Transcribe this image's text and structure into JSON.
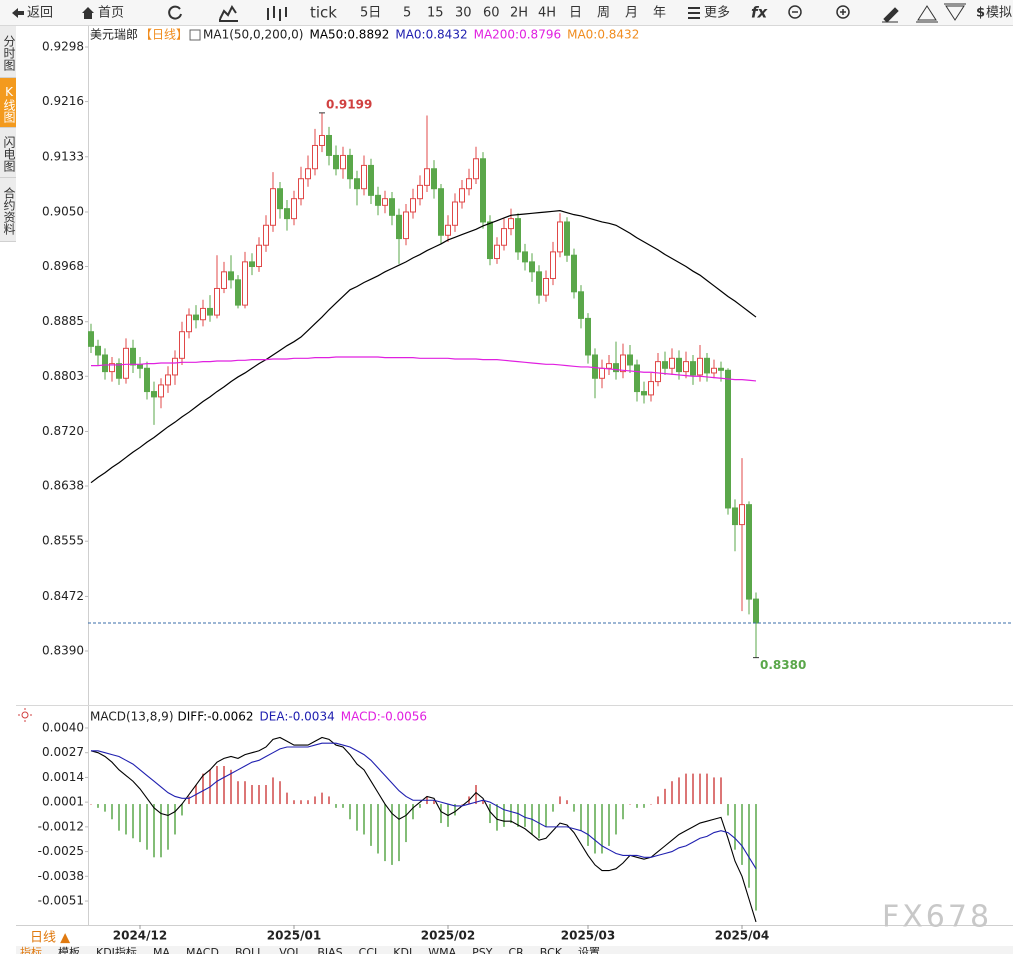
{
  "toolbar": {
    "items": [
      "返回",
      "首页",
      "tick",
      "5日",
      "5",
      "15",
      "30",
      "60",
      "2H",
      "4H",
      "日",
      "周",
      "月",
      "年",
      "更多",
      "模拟"
    ]
  },
  "sidebar": {
    "tabs": [
      "分时图",
      "K线图",
      "闪电图",
      "合约资料"
    ]
  },
  "chart_data": [
    {
      "type": "candlestick",
      "title": "美元瑞郎",
      "period": "【日线】",
      "indicator": "MA1(50,0,200,0)",
      "legend": [
        {
          "text": "MA50:0.8892",
          "color": "#000000"
        },
        {
          "text": "MA0:0.8432",
          "color": "#2020b0"
        },
        {
          "text": "MA200:0.8796",
          "color": "#e020e0"
        },
        {
          "text": "MA0:0.8432",
          "color": "#f08c1e"
        }
      ],
      "categories": [
        null,
        null,
        null,
        null,
        null,
        null,
        null,
        "2024/12",
        null,
        null,
        null,
        null,
        null,
        null,
        null,
        null,
        null,
        null,
        null,
        null,
        null,
        null,
        null,
        null,
        null,
        null,
        null,
        null,
        null,
        "2025/01",
        null,
        null,
        null,
        null,
        null,
        null,
        null,
        null,
        null,
        null,
        null,
        null,
        null,
        null,
        null,
        null,
        null,
        null,
        null,
        null,
        null,
        "2025/02",
        null,
        null,
        null,
        null,
        null,
        null,
        null,
        null,
        null,
        null,
        null,
        null,
        null,
        null,
        null,
        null,
        null,
        null,
        null,
        "2025/03",
        null,
        null,
        null,
        null,
        null,
        null,
        null,
        null,
        null,
        null,
        null,
        null,
        null,
        null,
        null,
        null,
        null,
        null,
        null,
        null,
        null,
        "2025/04",
        null,
        null
      ],
      "open": [
        0.887,
        0.8848,
        0.8835,
        0.881,
        0.8822,
        0.88,
        0.8845,
        0.882,
        0.8815,
        0.878,
        0.8772,
        0.879,
        0.8805,
        0.883,
        0.887,
        0.8895,
        0.8888,
        0.8905,
        0.8895,
        0.8935,
        0.896,
        0.8948,
        0.891,
        0.8975,
        0.8968,
        0.9,
        0.903,
        0.9085,
        0.9055,
        0.904,
        0.907,
        0.91,
        0.9115,
        0.915,
        0.9165,
        0.9135,
        0.9115,
        0.9135,
        0.91,
        0.9085,
        0.912,
        0.9075,
        0.906,
        0.907,
        0.9045,
        0.901,
        0.905,
        0.907,
        0.909,
        0.9115,
        0.9085,
        0.9015,
        0.903,
        0.9065,
        0.9085,
        0.91,
        0.913,
        0.9035,
        0.898,
        0.9,
        0.9025,
        0.904,
        0.899,
        0.8975,
        0.896,
        0.8925,
        0.895,
        0.899,
        0.9035,
        0.8985,
        0.893,
        0.889,
        0.8835,
        0.88,
        0.8815,
        0.8822,
        0.881,
        0.8835,
        0.882,
        0.878,
        0.8775,
        0.8795,
        0.8825,
        0.8815,
        0.883,
        0.881,
        0.8825,
        0.8805,
        0.883,
        0.8808,
        0.8815,
        0.8812,
        0.8605,
        0.858,
        0.861,
        0.8468
      ],
      "high": [
        0.8882,
        0.8858,
        0.8845,
        0.8832,
        0.883,
        0.886,
        0.8858,
        0.8832,
        0.8825,
        0.8795,
        0.88,
        0.8818,
        0.8842,
        0.8885,
        0.8905,
        0.891,
        0.8918,
        0.8925,
        0.8985,
        0.8975,
        0.8985,
        0.8955,
        0.899,
        0.8988,
        0.9012,
        0.9045,
        0.911,
        0.9095,
        0.9068,
        0.9082,
        0.9118,
        0.9135,
        0.9175,
        0.9199,
        0.9178,
        0.915,
        0.9148,
        0.9145,
        0.9112,
        0.9135,
        0.913,
        0.9088,
        0.9082,
        0.908,
        0.9055,
        0.9062,
        0.9085,
        0.9105,
        0.9195,
        0.9128,
        0.9092,
        0.9045,
        0.9078,
        0.9098,
        0.9115,
        0.9148,
        0.914,
        0.9045,
        0.9012,
        0.904,
        0.9055,
        0.9048,
        0.9002,
        0.8988,
        0.897,
        0.8962,
        0.9005,
        0.9048,
        0.9042,
        0.8995,
        0.894,
        0.8898,
        0.8845,
        0.8828,
        0.8835,
        0.8855,
        0.8852,
        0.885,
        0.8828,
        0.8795,
        0.8808,
        0.8838,
        0.884,
        0.8845,
        0.8842,
        0.884,
        0.8835,
        0.885,
        0.8838,
        0.8828,
        0.8825,
        0.8815,
        0.8618,
        0.868,
        0.8615,
        0.8478
      ],
      "low": [
        0.8838,
        0.882,
        0.8798,
        0.8795,
        0.879,
        0.8792,
        0.8808,
        0.88,
        0.8768,
        0.873,
        0.8755,
        0.8778,
        0.879,
        0.882,
        0.886,
        0.8875,
        0.8878,
        0.8885,
        0.889,
        0.8928,
        0.8935,
        0.8905,
        0.8905,
        0.8955,
        0.896,
        0.899,
        0.902,
        0.904,
        0.9022,
        0.903,
        0.906,
        0.9088,
        0.9105,
        0.914,
        0.912,
        0.9105,
        0.91,
        0.9085,
        0.906,
        0.9075,
        0.9062,
        0.9045,
        0.9048,
        0.903,
        0.8972,
        0.9,
        0.904,
        0.906,
        0.908,
        0.907,
        0.9002,
        0.9005,
        0.902,
        0.9055,
        0.9075,
        0.9092,
        0.9025,
        0.897,
        0.8972,
        0.8992,
        0.9015,
        0.8978,
        0.8962,
        0.8945,
        0.8912,
        0.8915,
        0.894,
        0.8982,
        0.8975,
        0.892,
        0.8875,
        0.8822,
        0.877,
        0.8785,
        0.8805,
        0.8798,
        0.88,
        0.8808,
        0.8765,
        0.8762,
        0.8765,
        0.8788,
        0.8805,
        0.8805,
        0.8798,
        0.88,
        0.879,
        0.8795,
        0.8795,
        0.88,
        0.8795,
        0.8595,
        0.854,
        0.845,
        0.8445,
        0.838
      ],
      "close": [
        0.8848,
        0.8835,
        0.881,
        0.8822,
        0.88,
        0.8845,
        0.882,
        0.8815,
        0.878,
        0.8772,
        0.879,
        0.8805,
        0.883,
        0.887,
        0.8895,
        0.8888,
        0.8905,
        0.8895,
        0.8935,
        0.896,
        0.8948,
        0.891,
        0.8975,
        0.8968,
        0.9,
        0.903,
        0.9085,
        0.9055,
        0.904,
        0.907,
        0.91,
        0.9115,
        0.915,
        0.9165,
        0.9135,
        0.9115,
        0.9135,
        0.91,
        0.9085,
        0.912,
        0.9075,
        0.906,
        0.907,
        0.9045,
        0.901,
        0.905,
        0.907,
        0.909,
        0.9115,
        0.9085,
        0.9015,
        0.903,
        0.9065,
        0.9085,
        0.91,
        0.913,
        0.9035,
        0.898,
        0.9,
        0.9025,
        0.904,
        0.899,
        0.8975,
        0.896,
        0.8925,
        0.895,
        0.899,
        0.9035,
        0.8985,
        0.893,
        0.889,
        0.8835,
        0.88,
        0.8815,
        0.8822,
        0.881,
        0.8835,
        0.882,
        0.878,
        0.8775,
        0.8795,
        0.8825,
        0.8815,
        0.883,
        0.881,
        0.8825,
        0.8805,
        0.883,
        0.8808,
        0.8815,
        0.8812,
        0.8605,
        0.858,
        0.861,
        0.8468,
        0.8432
      ],
      "up_color": "#e04848",
      "down_color": "#5aa74a",
      "last_color": "#3a6ea8",
      "series": [
        {
          "color": "#000000",
          "values": [
            0.8643,
            0.8651,
            0.8658,
            0.8666,
            0.8673,
            0.8681,
            0.8689,
            0.8696,
            0.8704,
            0.8711,
            0.8719,
            0.8727,
            0.8734,
            0.8742,
            0.8749,
            0.8757,
            0.8765,
            0.8772,
            0.878,
            0.8787,
            0.8795,
            0.8802,
            0.8808,
            0.8815,
            0.8822,
            0.8828,
            0.8835,
            0.8842,
            0.8849,
            0.8855,
            0.8862,
            0.8872,
            0.8882,
            0.8892,
            0.8903,
            0.8913,
            0.8923,
            0.8933,
            0.8938,
            0.8944,
            0.8949,
            0.8954,
            0.896,
            0.8965,
            0.897,
            0.8975,
            0.8981,
            0.8986,
            0.8992,
            0.8997,
            0.9002,
            0.9008,
            0.9012,
            0.9016,
            0.902,
            0.9024,
            0.9029,
            0.9033,
            0.9037,
            0.9041,
            0.9045,
            0.9046,
            0.9047,
            0.9048,
            0.9049,
            0.905,
            0.9051,
            0.9052,
            0.9049,
            0.9046,
            0.9044,
            0.9041,
            0.9038,
            0.9035,
            0.9033,
            0.903,
            0.9024,
            0.9018,
            0.9011,
            0.9005,
            0.8999,
            0.8993,
            0.8986,
            0.898,
            0.8974,
            0.8968,
            0.8961,
            0.8955,
            0.8947,
            0.8939,
            0.8931,
            0.8923,
            0.8916,
            0.8908,
            0.89,
            0.8892
          ]
        },
        {
          "color": "#e020e0",
          "values": [
            0.8819,
            0.8819,
            0.882,
            0.882,
            0.882,
            0.8821,
            0.8821,
            0.8821,
            0.8822,
            0.8822,
            0.8823,
            0.8823,
            0.8823,
            0.8824,
            0.8824,
            0.8824,
            0.8825,
            0.8825,
            0.8826,
            0.8826,
            0.8826,
            0.8827,
            0.8827,
            0.8828,
            0.8828,
            0.8828,
            0.8829,
            0.8829,
            0.8829,
            0.883,
            0.883,
            0.883,
            0.8831,
            0.8831,
            0.8831,
            0.8832,
            0.8832,
            0.8832,
            0.8832,
            0.8832,
            0.8832,
            0.8832,
            0.8831,
            0.8831,
            0.8831,
            0.8831,
            0.8831,
            0.883,
            0.883,
            0.883,
            0.883,
            0.883,
            0.8829,
            0.8829,
            0.8829,
            0.8829,
            0.8828,
            0.8828,
            0.8828,
            0.8827,
            0.8826,
            0.8825,
            0.8824,
            0.8823,
            0.8822,
            0.8821,
            0.8821,
            0.882,
            0.8819,
            0.8818,
            0.8817,
            0.8817,
            0.8816,
            0.8815,
            0.8814,
            0.8813,
            0.8812,
            0.8811,
            0.881,
            0.8809,
            0.8809,
            0.8808,
            0.8807,
            0.8806,
            0.8805,
            0.8804,
            0.8803,
            0.8803,
            0.8802,
            0.8801,
            0.88,
            0.8799,
            0.8798,
            0.8798,
            0.8797,
            0.8796
          ]
        }
      ],
      "annotations": [
        {
          "text": "0.9199",
          "value": 0.9199,
          "color": "#d04040"
        },
        {
          "text": "0.8380",
          "value": 0.838,
          "color": "#5aa74a"
        }
      ],
      "ylim": [
        0.83163,
        0.93266
      ],
      "yticks": [
        0.9298,
        0.9216,
        0.9133,
        {
          "value": 0.905,
          "label": "0.9050"
        },
        0.8968,
        0.8885,
        0.8803,
        {
          "value": 0.872,
          "label": "0.8720"
        },
        0.8638,
        0.8555,
        0.8472,
        {
          "value": 0.839,
          "label": "0.8390"
        }
      ],
      "grid": false
    },
    {
      "type": "macd",
      "title": "MACD(13,8,9)",
      "legend": [
        {
          "text": "DIFF:-0.0062",
          "color": "#000000"
        },
        {
          "text": "DEA:-0.0034",
          "color": "#2020b0"
        },
        {
          "text": "MACD:-0.0056",
          "color": "#e020e0"
        }
      ],
      "series": [
        {
          "color": "#000000",
          "values": [
            0.0028,
            0.0027,
            0.0025,
            0.0022,
            0.0018,
            0.0015,
            0.0012,
            0.0008,
            0.0003,
            -0.0002,
            -0.0005,
            -0.0006,
            -0.0004,
            0.0,
            0.0005,
            0.001,
            0.0015,
            0.0018,
            0.0022,
            0.0024,
            0.0025,
            0.0024,
            0.0026,
            0.0027,
            0.0028,
            0.003,
            0.0034,
            0.0035,
            0.0033,
            0.0031,
            0.0031,
            0.0031,
            0.0033,
            0.0035,
            0.0034,
            0.0031,
            0.003,
            0.0026,
            0.0021,
            0.0018,
            0.0012,
            0.0006,
            0.0,
            -0.0005,
            -0.0008,
            -0.0006,
            -0.0002,
            0.0001,
            0.0004,
            0.0003,
            -0.0004,
            -0.0006,
            -0.0004,
            -0.0001,
            0.0002,
            0.0006,
            0.0003,
            -0.0004,
            -0.0008,
            -0.0009,
            -0.0009,
            -0.0011,
            -0.0013,
            -0.0016,
            -0.0019,
            -0.0018,
            -0.0014,
            -0.001,
            -0.0011,
            -0.0015,
            -0.0021,
            -0.0027,
            -0.0032,
            -0.0035,
            -0.0035,
            -0.0034,
            -0.0031,
            -0.0027,
            -0.0028,
            -0.0029,
            -0.0028,
            -0.0025,
            -0.0022,
            -0.0019,
            -0.0016,
            -0.0014,
            -0.0012,
            -0.001,
            -0.0009,
            -0.0008,
            -0.0007,
            -0.0018,
            -0.003,
            -0.0038,
            -0.005,
            -0.0062
          ]
        },
        {
          "color": "#2020b0",
          "values": [
            0.0028,
            0.0028,
            0.0027,
            0.0026,
            0.0025,
            0.0023,
            0.0021,
            0.0018,
            0.0015,
            0.0012,
            0.0009,
            0.0006,
            0.0004,
            0.0003,
            0.0003,
            0.0005,
            0.0007,
            0.0009,
            0.0012,
            0.0014,
            0.0016,
            0.0018,
            0.002,
            0.0022,
            0.0023,
            0.0025,
            0.0027,
            0.0029,
            0.003,
            0.003,
            0.003,
            0.003,
            0.0031,
            0.0032,
            0.0032,
            0.0032,
            0.0031,
            0.003,
            0.0028,
            0.0026,
            0.0023,
            0.0019,
            0.0015,
            0.0011,
            0.0007,
            0.0004,
            0.0002,
            0.0002,
            0.0002,
            0.0002,
            0.0001,
            0.0,
            -0.0001,
            -0.0001,
            0.0,
            0.0001,
            0.0002,
            0.0001,
            -0.0001,
            -0.0003,
            -0.0004,
            -0.0005,
            -0.0007,
            -0.0008,
            -0.001,
            -0.0012,
            -0.0012,
            -0.0012,
            -0.0012,
            -0.0013,
            -0.0014,
            -0.0016,
            -0.0019,
            -0.0022,
            -0.0024,
            -0.0026,
            -0.0027,
            -0.0027,
            -0.0027,
            -0.0028,
            -0.0028,
            -0.0027,
            -0.0026,
            -0.0025,
            -0.0023,
            -0.0022,
            -0.002,
            -0.0018,
            -0.0017,
            -0.0015,
            -0.0014,
            -0.0015,
            -0.0018,
            -0.0022,
            -0.0028,
            -0.0034
          ]
        }
      ],
      "histogram": {
        "up_color": "#d04848",
        "down_color": "#5aa74a",
        "values": [
          0.0,
          -0.0002,
          -0.0004,
          -0.0008,
          -0.0014,
          -0.0016,
          -0.0018,
          -0.002,
          -0.0024,
          -0.0028,
          -0.0028,
          -0.0024,
          -0.0016,
          -0.0006,
          0.0004,
          0.001,
          0.0016,
          0.0018,
          0.002,
          0.002,
          0.0018,
          0.0012,
          0.0012,
          0.001,
          0.001,
          0.001,
          0.0014,
          0.0012,
          0.0006,
          0.0002,
          0.0002,
          0.0002,
          0.0004,
          0.0006,
          0.0004,
          -0.0002,
          -0.0002,
          -0.0008,
          -0.0014,
          -0.0016,
          -0.0022,
          -0.0026,
          -0.003,
          -0.0032,
          -0.003,
          -0.002,
          -0.0008,
          -0.0002,
          0.0004,
          0.0002,
          -0.001,
          -0.0012,
          -0.0006,
          0.0,
          0.0004,
          0.001,
          0.0002,
          -0.001,
          -0.0014,
          -0.0012,
          -0.001,
          -0.0012,
          -0.0012,
          -0.0016,
          -0.0018,
          -0.0012,
          -0.0004,
          0.0004,
          0.0002,
          -0.0004,
          -0.0014,
          -0.0022,
          -0.0026,
          -0.0026,
          -0.0022,
          -0.0016,
          -0.0008,
          0.0,
          -0.0002,
          -0.0002,
          0.0,
          0.0004,
          0.0008,
          0.0012,
          0.0014,
          0.0016,
          0.0016,
          0.0016,
          0.0016,
          0.0014,
          0.0014,
          -0.0006,
          -0.0024,
          -0.0032,
          -0.0044,
          -0.0056
        ]
      },
      "ylim": [
        -0.00636,
        0.00505
      ],
      "yticks": [
        {
          "value": 0.004,
          "label": "0.0040"
        },
        0.0027,
        0.0014,
        0.0001,
        -0.0012,
        -0.0025,
        -0.0038,
        -0.0051
      ]
    }
  ],
  "bottom": {
    "period": "日线 ▲",
    "tabs": [
      "指标",
      "模板",
      "KDJ指标",
      "MA",
      "MACD",
      "BOLL",
      "VOL",
      "BIAS",
      "CCI",
      "KDJ",
      "WMA",
      "PSY",
      "CR",
      "BCK",
      "设置"
    ]
  },
  "watermark": "FX678"
}
